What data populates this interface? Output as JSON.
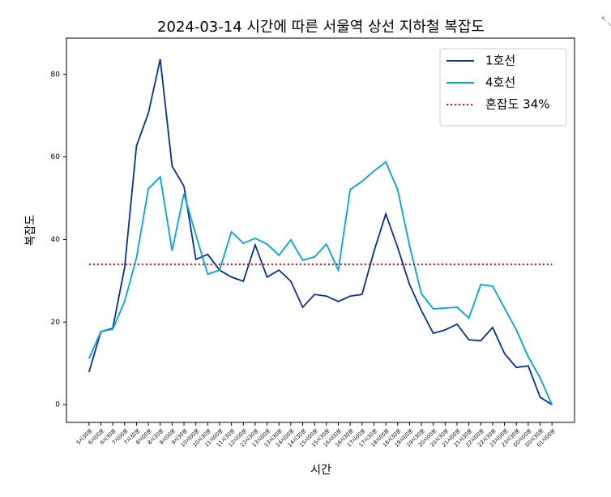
{
  "chart_data": {
    "type": "line",
    "title": "2024-03-14 시간에 따른 서울역 상선 지하철 복잡도",
    "xlabel": "시간",
    "ylabel": "복잡도",
    "categories": [
      "5시30분",
      "6시00분",
      "6시30분",
      "7시00분",
      "7시30분",
      "8시00분",
      "8시30분",
      "9시00분",
      "9시30분",
      "10시00분",
      "10시30분",
      "11시00분",
      "11시30분",
      "12시00분",
      "12시30분",
      "13시00분",
      "13시30분",
      "14시00분",
      "14시30분",
      "15시00분",
      "15시30분",
      "16시00분",
      "16시30분",
      "17시00분",
      "17시30분",
      "18시00분",
      "18시30분",
      "19시00분",
      "19시30분",
      "20시00분",
      "20시30분",
      "21시00분",
      "21시30분",
      "22시00분",
      "22시30분",
      "23시00분",
      "23시30분",
      "00시00분",
      "00시30분",
      "01시00분"
    ],
    "series": [
      {
        "name": "1호선",
        "color": "#0a2f9c",
        "values": [
          7.9,
          17.7,
          18.5,
          33.2,
          62.7,
          70.6,
          83.7,
          57.8,
          52.9,
          35.2,
          36.4,
          32.6,
          30.9,
          29.9,
          38.7,
          30.9,
          32.6,
          29.9,
          23.6,
          26.7,
          26.3,
          25.0,
          26.3,
          26.7,
          37.1,
          46.2,
          38.1,
          29.1,
          22.8,
          17.3,
          18.1,
          19.5,
          15.7,
          15.5,
          18.7,
          12.4,
          9.0,
          9.4,
          1.8,
          0
        ]
      },
      {
        "name": "4호선",
        "color": "#00a5de",
        "values": [
          11.2,
          17.7,
          18.3,
          25.0,
          35.6,
          52.3,
          55.2,
          37.3,
          51.1,
          41.1,
          31.6,
          32.6,
          41.9,
          39.1,
          40.3,
          38.9,
          36.2,
          39.9,
          35.0,
          35.8,
          38.9,
          32.6,
          52.1,
          54.1,
          56.6,
          58.8,
          52.1,
          38.5,
          26.9,
          23.2,
          23.4,
          23.6,
          21.0,
          29.1,
          28.7,
          23.4,
          18.1,
          11.6,
          6.5,
          0
        ]
      }
    ],
    "hlines": [
      {
        "name": "혼잡도 34%",
        "value": 34,
        "color": "#ff0000"
      }
    ],
    "ylim": [
      -4.3,
      88.8
    ],
    "yticks": [
      0,
      20,
      40,
      60,
      80
    ],
    "legend": "upper right"
  }
}
